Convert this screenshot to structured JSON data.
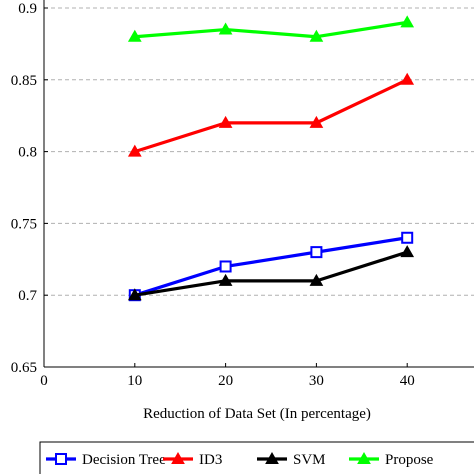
{
  "chart_data": {
    "type": "line",
    "title": "",
    "xlabel": "Reduction of Data Set (In percentage)",
    "ylabel": "",
    "xlim": [
      0,
      50
    ],
    "ylim": [
      0.65,
      0.9
    ],
    "x_ticks": [
      0,
      10,
      20,
      30,
      40
    ],
    "x_tick_labels": [
      "0",
      "10",
      "20",
      "30",
      "40"
    ],
    "y_ticks": [
      0.65,
      0.7,
      0.75,
      0.8,
      0.85,
      0.9
    ],
    "y_tick_labels": [
      "0.65",
      "0.7",
      "0.75",
      "0.8",
      "0.85",
      "0.9"
    ],
    "grid": "horizontal dashed",
    "legend_placement": "bottom",
    "x": [
      10,
      20,
      30,
      40
    ],
    "series": [
      {
        "name": "Decision Tree",
        "values": [
          0.7,
          0.72,
          0.73,
          0.74
        ],
        "color": "#0000ff",
        "marker": "square-open"
      },
      {
        "name": "ID3",
        "values": [
          0.8,
          0.82,
          0.82,
          0.85
        ],
        "color": "#ff0000",
        "marker": "triangle"
      },
      {
        "name": "SVM",
        "values": [
          0.7,
          0.71,
          0.71,
          0.73
        ],
        "color": "#000000",
        "marker": "triangle"
      },
      {
        "name": "Propose",
        "values": [
          0.88,
          0.885,
          0.88,
          0.89
        ],
        "color": "#00ff00",
        "marker": "triangle"
      }
    ]
  }
}
